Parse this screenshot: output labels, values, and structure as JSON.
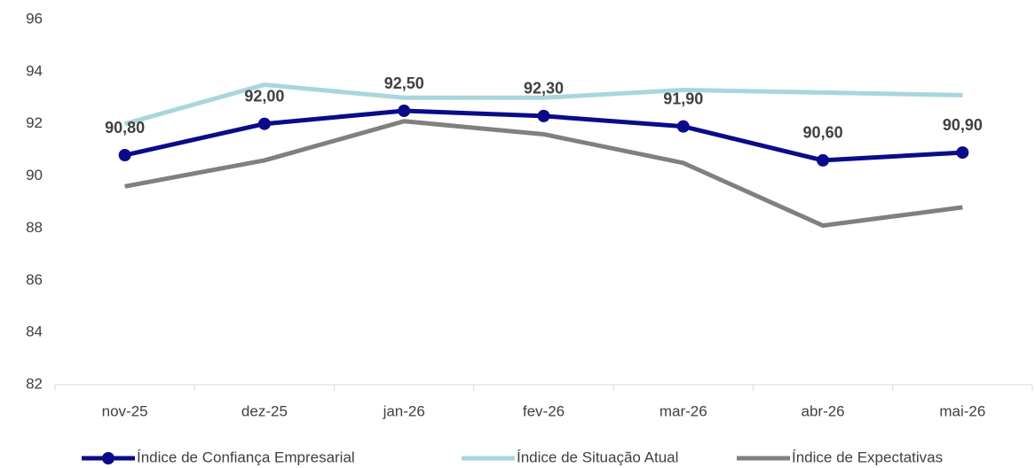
{
  "chart_data": {
    "type": "line",
    "categories": [
      "nov-25",
      "dez-25",
      "jan-26",
      "fev-26",
      "mar-26",
      "abr-26",
      "mai-26"
    ],
    "series": [
      {
        "name": "Índice de Confiança Empresarial",
        "color": "#0b0b8a",
        "markers": true,
        "values": [
          90.8,
          92.0,
          92.5,
          92.3,
          91.9,
          90.6,
          90.9
        ],
        "value_labels": [
          "90,80",
          "92,00",
          "92,50",
          "92,30",
          "91,90",
          "90,60",
          "90,90"
        ]
      },
      {
        "name": "Índice de Situação Atual",
        "color": "#a9d6dc",
        "markers": false,
        "values": [
          92.0,
          93.5,
          93.0,
          93.0,
          93.3,
          93.2,
          93.1
        ]
      },
      {
        "name": "Índice de Expectativas",
        "color": "#808080",
        "markers": false,
        "values": [
          89.6,
          90.6,
          92.1,
          91.6,
          90.5,
          88.1,
          88.8
        ]
      }
    ],
    "ylim": [
      82,
      96
    ],
    "yticks": [
      82,
      84,
      86,
      88,
      90,
      92,
      94,
      96
    ],
    "grid": false,
    "legend": "bottom"
  }
}
